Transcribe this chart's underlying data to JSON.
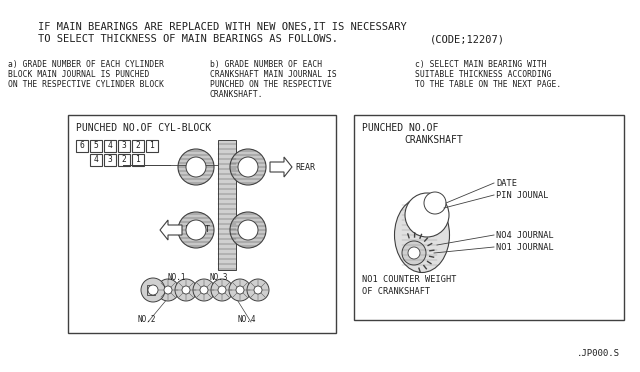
{
  "bg_color": "#ffffff",
  "line_color": "#404040",
  "text_color": "#202020",
  "title_line1": "IF MAIN BEARINGS ARE REPLACED WITH NEW ONES,IT IS NECESSARY",
  "title_line2": "TO SELECT THICKNESS OF MAIN BEARINGS AS FOLLOWS.",
  "title_code": "(CODE;12207)",
  "note_a_line1": "a) GRADE NUMBER OF EACH CYLINDER",
  "note_a_line2": "BLOCK MAIN JOURNAL IS PUNCHED",
  "note_a_line3": "ON THE RESPECTIVE CYLINDER BLOCK",
  "note_b_line1": "b) GRADE NUMBER OF EACH",
  "note_b_line2": "CRANKSHAFT MAIN JOURNAL IS",
  "note_b_line3": "PUNCHED ON THE RESPECTIVE",
  "note_b_line4": "CRANKSHAFT.",
  "note_c_line1": "c) SELECT MAIN BEARING WITH",
  "note_c_line2": "SUITABLE THICKNESS ACCORDING",
  "note_c_line3": "TO THE TABLE ON THE NEXT PAGE.",
  "box1_title": "PUNCHED NO.OF CYL-BLOCK",
  "box2_title1": "PUNCHED NO.OF",
  "box2_title2": "CRANKSHAFT",
  "footer": ".JP000.S"
}
